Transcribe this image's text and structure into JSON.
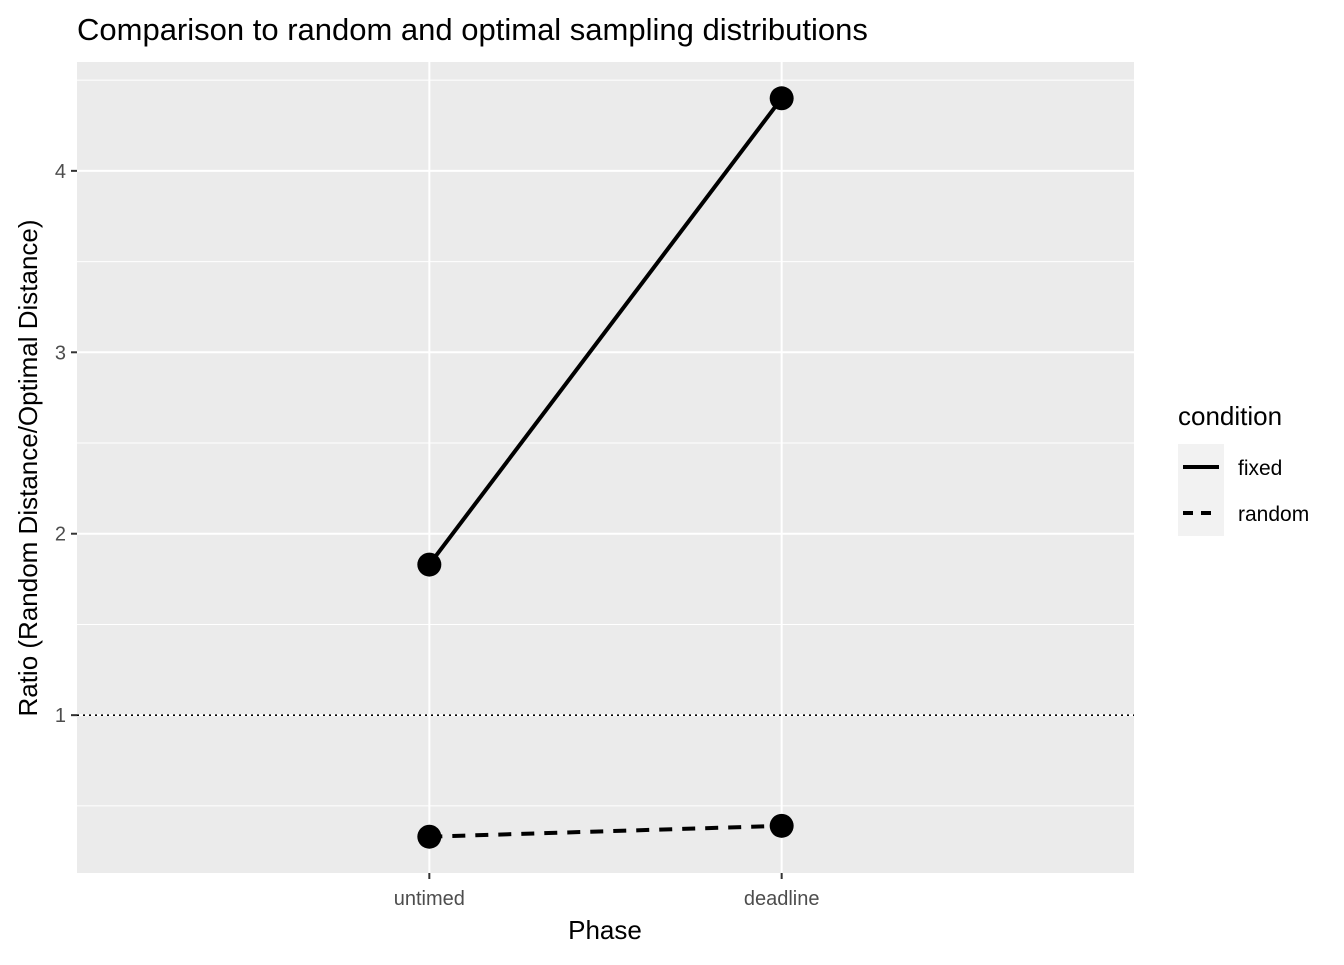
{
  "chart_data": {
    "type": "line",
    "title": "Comparison to random and optimal sampling distributions",
    "xlabel": "Phase",
    "ylabel": "Ratio (Random Distance/Optimal Distance)",
    "categories": [
      "untimed",
      "deadline"
    ],
    "ylim": [
      0.13,
      4.6
    ],
    "yticks": [
      1,
      2,
      3,
      4
    ],
    "reference_line": {
      "y": 1,
      "style": "dotted"
    },
    "grid": true,
    "legend": {
      "title": "condition",
      "position": "right",
      "entries": [
        {
          "label": "fixed",
          "linetype": "solid"
        },
        {
          "label": "random",
          "linetype": "dashed"
        }
      ]
    },
    "series": [
      {
        "name": "fixed",
        "linetype": "solid",
        "values": [
          1.83,
          4.4
        ]
      },
      {
        "name": "random",
        "linetype": "dashed",
        "values": [
          0.33,
          0.39
        ]
      }
    ],
    "colors": {
      "panel": "#ebebeb",
      "grid": "#ffffff",
      "line": "#000000",
      "text": "#4d4d4d"
    }
  }
}
